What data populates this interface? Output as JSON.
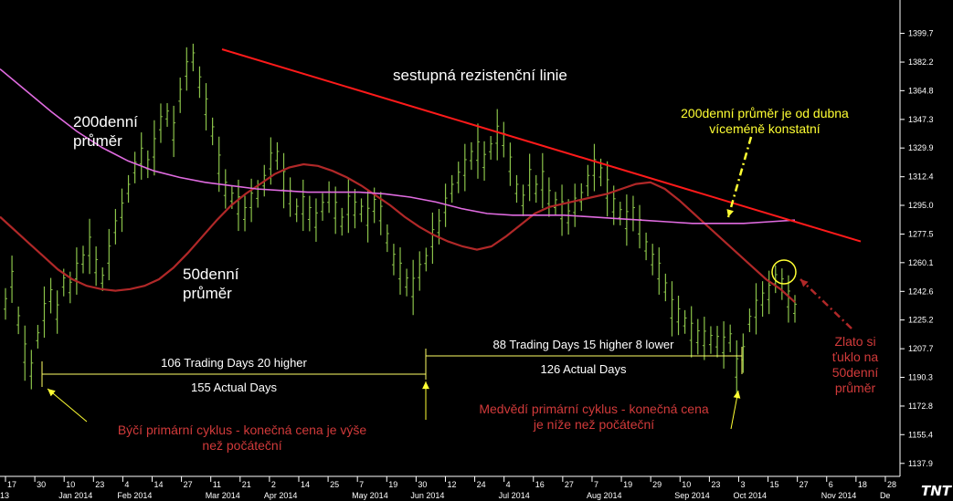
{
  "chart_data": {
    "type": "line",
    "title": "",
    "ylim": [
      1130,
      1420
    ],
    "y_ticks": [
      "1399.7",
      "1382.2",
      "1364.8",
      "1347.3",
      "1329.9",
      "1312.4",
      "1295.0",
      "1277.5",
      "1260.1",
      "1242.6",
      "1225.2",
      "1207.7",
      "1190.3",
      "1172.8",
      "1155.4",
      "1137.9"
    ],
    "x_ticks_day": [
      "17",
      "30",
      "10",
      "23",
      "4",
      "14",
      "27",
      "11",
      "21",
      "2",
      "14",
      "25",
      "7",
      "19",
      "30",
      "12",
      "24",
      "4",
      "16",
      "27",
      "7",
      "19",
      "29",
      "10",
      "23",
      "3",
      "15",
      "27",
      "6",
      "18",
      "28"
    ],
    "x_ticks_month": [
      {
        "label": "13",
        "day_index": 0
      },
      {
        "label": "Jan 2014",
        "day_index": 2
      },
      {
        "label": "Feb 2014",
        "day_index": 4
      },
      {
        "label": "Mar 2014",
        "day_index": 7
      },
      {
        "label": "Apr 2014",
        "day_index": 9
      },
      {
        "label": "May 2014",
        "day_index": 12
      },
      {
        "label": "Jun 2014",
        "day_index": 14
      },
      {
        "label": "Jul 2014",
        "day_index": 17
      },
      {
        "label": "Aug 2014",
        "day_index": 20
      },
      {
        "label": "Sep 2014",
        "day_index": 23
      },
      {
        "label": "Oct 2014",
        "day_index": 25
      },
      {
        "label": "Nov 2014",
        "day_index": 28
      },
      {
        "label": "De",
        "day_index": 30
      }
    ],
    "series": [
      {
        "kind": "price",
        "values": [
          1235,
          1250,
          1225,
          1205,
          1195,
          1215,
          1230,
          1240,
          1230,
          1248,
          1245,
          1255,
          1262,
          1270,
          1258,
          1250,
          1265,
          1282,
          1292,
          1305,
          1318,
          1325,
          1320,
          1330,
          1345,
          1350,
          1340,
          1362,
          1378,
          1385,
          1370,
          1355,
          1340,
          1320,
          1305,
          1300,
          1295,
          1290,
          1298,
          1302,
          1310,
          1322,
          1325,
          1310,
          1300,
          1292,
          1295,
          1290,
          1286,
          1294,
          1300,
          1292,
          1285,
          1295,
          1293,
          1292,
          1288,
          1295,
          1290,
          1275,
          1262,
          1255,
          1248,
          1245,
          1255,
          1262,
          1275,
          1282,
          1295,
          1305,
          1312,
          1318,
          1325,
          1328,
          1322,
          1330,
          1338,
          1335,
          1320,
          1305,
          1298,
          1312,
          1305,
          1310,
          1300,
          1296,
          1292,
          1288,
          1295,
          1300,
          1310,
          1318,
          1315,
          1305,
          1295,
          1290,
          1286,
          1290,
          1282,
          1270,
          1262,
          1255,
          1245,
          1232,
          1228,
          1224,
          1218,
          1215,
          1214,
          1213,
          1212,
          1210,
          1214,
          1196,
          1205,
          1225,
          1232,
          1238,
          1242,
          1250,
          1247,
          1238,
          1232
        ]
      },
      {
        "kind": "50-day MA",
        "values": [
          1288,
          1280,
          1272,
          1264,
          1256,
          1250,
          1246,
          1244,
          1243,
          1244,
          1246,
          1250,
          1257,
          1266,
          1276,
          1286,
          1295,
          1302,
          1308,
          1314,
          1318,
          1320,
          1319,
          1316,
          1312,
          1307,
          1301,
          1295,
          1288,
          1282,
          1277,
          1273,
          1270,
          1268,
          1270,
          1276,
          1283,
          1290,
          1294,
          1296,
          1298,
          1300,
          1302,
          1305,
          1308,
          1309,
          1305,
          1298,
          1290,
          1282,
          1274,
          1266,
          1258,
          1250,
          1244,
          1236
        ]
      },
      {
        "kind": "200-day MA",
        "values": [
          1378,
          1365,
          1352,
          1340,
          1330,
          1322,
          1316,
          1312,
          1309,
          1307,
          1305,
          1304,
          1303,
          1303,
          1303,
          1302,
          1300,
          1297,
          1293,
          1290,
          1289,
          1289,
          1289,
          1288,
          1287,
          1286,
          1285,
          1284,
          1284,
          1284,
          1285,
          1286
        ]
      }
    ],
    "annotations": {
      "resistance_line_label": "sestupná rezistenční linie",
      "ma200_label": "200denní\nprůměr",
      "ma50_label": "50denní\nprůměr",
      "ma200_note": "200denní průměr je od dubna\nvíceméně konstatní",
      "gold_note": "Zlato si\nťuklo na\n50denní\nprůměr",
      "bull_cycle_top": "106 Trading Days 20 higher",
      "bull_cycle_bottom": "155 Actual Days",
      "bear_cycle_top": "88 Trading Days 15 higher 8 lower",
      "bear_cycle_bottom": "126 Actual Days",
      "bull_note": "Býčí primární cyklus - konečná cena je výše\nnež počáteční",
      "bear_note": "Medvědí primární cyklus - konečná cena\nje níže než počáteční"
    },
    "logo": "TNT",
    "colors": {
      "price": "#8bc34a",
      "ma50": "#b02828",
      "ma200": "#e06be0",
      "resistance": "#ff1a1a",
      "yellow": "#ffff33",
      "red_text": "#d13a3a"
    }
  }
}
